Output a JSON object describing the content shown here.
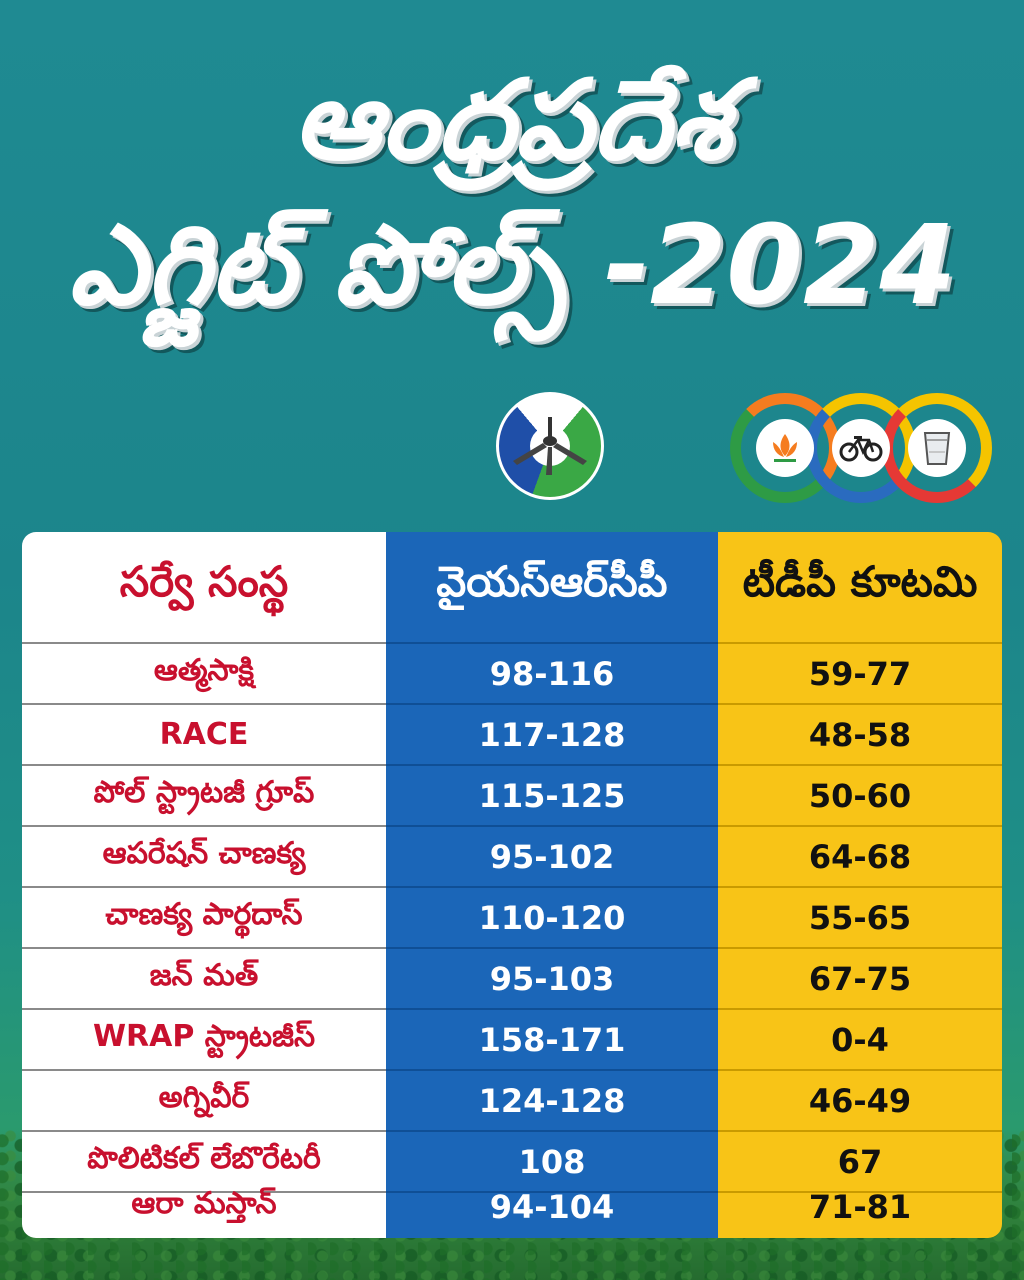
{
  "title": {
    "line1": "ఆంధ్రప్రదేశ",
    "line2": "ఎగ్జిట్ పోల్స్ -2024"
  },
  "logos": {
    "ysrcp": "ysrcp-fan-symbol-icon",
    "alliance": [
      "bjp-lotus-icon",
      "tdp-bicycle-icon",
      "janasena-glass-icon"
    ]
  },
  "colors": {
    "ysr_column": "#1b66b8",
    "tdp_column": "#f8c417",
    "agency_text": "#c8102e"
  },
  "table": {
    "headers": {
      "agency": "సర్వే సంస్థ",
      "ysrcp": "వైయస్ఆర్‌సీపీ",
      "tdp": "టీడీపీ కూటమి"
    },
    "rows": [
      {
        "agency": "ఆత్మసాక్షి",
        "ysrcp": "98-116",
        "tdp": "59-77"
      },
      {
        "agency": "RACE",
        "ysrcp": "117-128",
        "tdp": "48-58"
      },
      {
        "agency": "పోల్ స్ట్రాటజీ గ్రూప్",
        "ysrcp": "115-125",
        "tdp": "50-60"
      },
      {
        "agency": "ఆపరేషన్ చాణక్య",
        "ysrcp": "95-102",
        "tdp": "64-68"
      },
      {
        "agency": "చాణక్య పార్థదాస్",
        "ysrcp": "110-120",
        "tdp": "55-65"
      },
      {
        "agency": "జన్ మత్",
        "ysrcp": "95-103",
        "tdp": "67-75"
      },
      {
        "agency": "WRAP స్ట్రాటజీస్",
        "ysrcp": "158-171",
        "tdp": "0-4"
      },
      {
        "agency": "అగ్నివీర్",
        "ysrcp": "124-128",
        "tdp": "46-49"
      },
      {
        "agency": "పొలిటికల్ లేబొరేటరీ",
        "ysrcp": "108",
        "tdp": "67"
      },
      {
        "agency": "ఆరా మస్తాన్",
        "ysrcp": "94-104",
        "tdp": "71-81"
      }
    ]
  }
}
